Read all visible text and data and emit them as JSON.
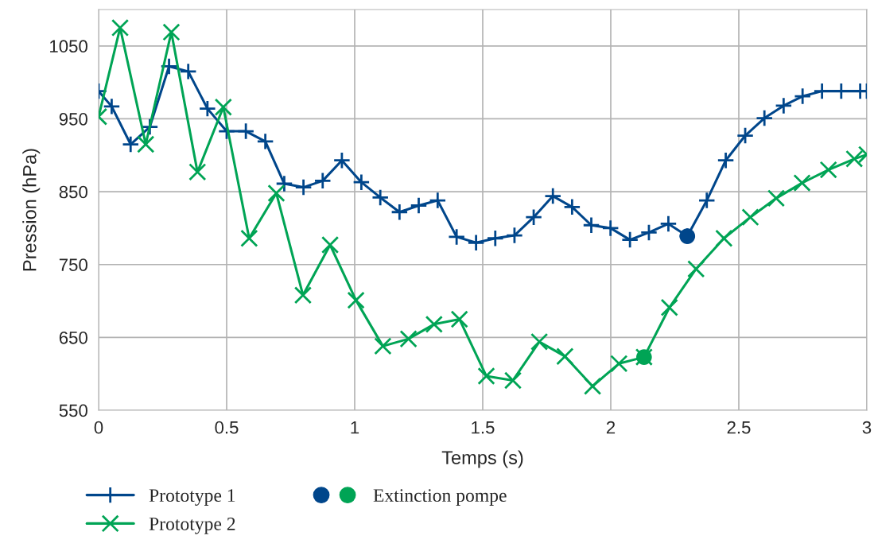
{
  "chart_data": {
    "type": "line",
    "xlabel": "Temps (s)",
    "ylabel": "Pression (hPa)",
    "xlim": [
      0,
      3
    ],
    "ylim": [
      550,
      1100
    ],
    "xticks": [
      0,
      0.5,
      1,
      1.5,
      2,
      2.5,
      3
    ],
    "yticks": [
      550,
      650,
      750,
      850,
      950,
      1050
    ],
    "grid": true,
    "legend": "bottom left",
    "series": [
      {
        "name": "Prototype 1",
        "color": "#00468b",
        "marker": "plus",
        "x": [
          0,
          0.051,
          0.125,
          0.2,
          0.275,
          0.35,
          0.425,
          0.5,
          0.575,
          0.651,
          0.725,
          0.8,
          0.875,
          0.95,
          1.026,
          1.1,
          1.175,
          1.25,
          1.324,
          1.398,
          1.474,
          1.549,
          1.624,
          1.699,
          1.774,
          1.849,
          1.924,
          1.999,
          2.075,
          2.149,
          2.225,
          2.299,
          2.375,
          2.449,
          2.525,
          2.6,
          2.675,
          2.749,
          2.825,
          2.9,
          2.974,
          3
        ],
        "values": [
          988,
          967,
          915,
          939,
          1022,
          1015,
          964,
          933,
          933,
          919,
          861,
          856,
          865,
          893,
          863,
          842,
          822,
          831,
          838,
          788,
          780,
          786,
          790,
          815,
          844,
          829,
          804,
          800,
          784,
          794,
          806,
          789,
          838,
          893,
          927,
          951,
          968,
          981,
          988,
          988,
          988,
          988
        ]
      },
      {
        "name": "Prototype 2",
        "color": "#00a455",
        "marker": "cross",
        "x": [
          0,
          0.084,
          0.184,
          0.284,
          0.386,
          0.487,
          0.588,
          0.694,
          0.798,
          0.904,
          1.005,
          1.11,
          1.21,
          1.31,
          1.409,
          1.514,
          1.618,
          1.721,
          1.821,
          1.929,
          2.032,
          2.13,
          2.229,
          2.333,
          2.442,
          2.545,
          2.646,
          2.747,
          2.85,
          2.951,
          3
        ],
        "values": [
          953,
          1075,
          915,
          1069,
          877,
          966,
          786,
          848,
          708,
          777,
          701,
          638,
          648,
          668,
          675,
          597,
          591,
          644,
          624,
          583,
          614,
          623,
          691,
          744,
          786,
          815,
          841,
          862,
          880,
          895,
          901
        ]
      },
      {
        "name": "Extinction pompe",
        "type": "scatter",
        "marker": "circle",
        "colors": [
          "#00468b",
          "#00a455"
        ],
        "x": [
          2.299,
          2.13
        ],
        "values": [
          789,
          623
        ]
      }
    ]
  }
}
